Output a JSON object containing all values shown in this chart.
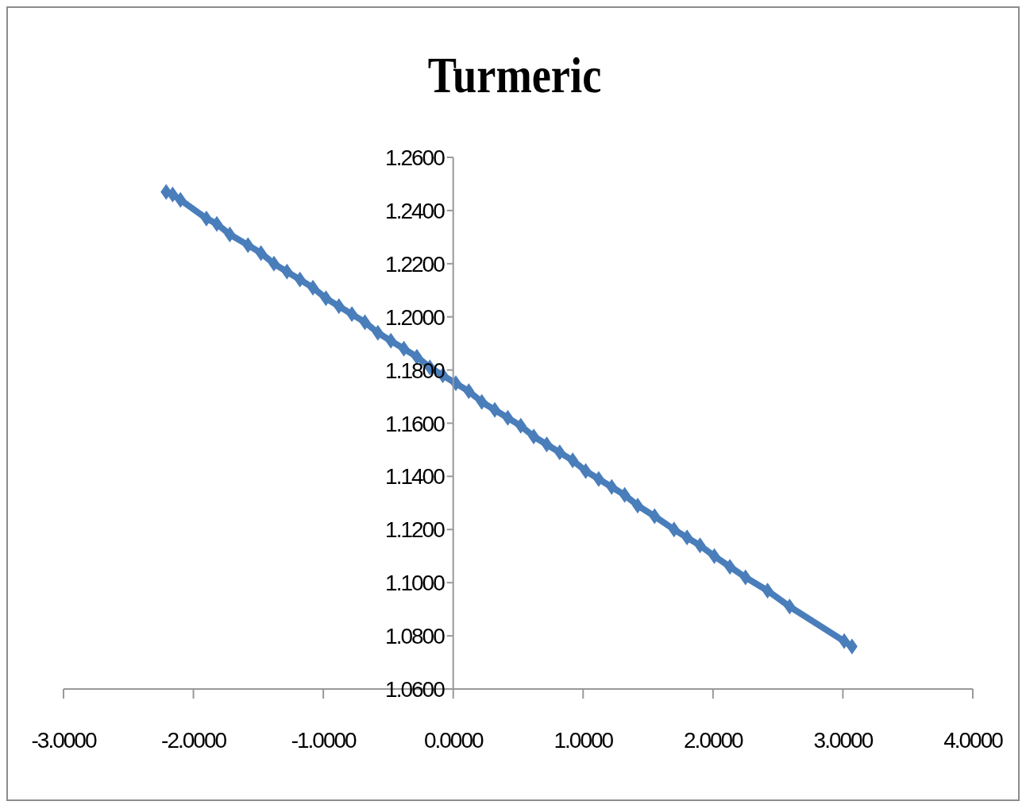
{
  "chart_data": {
    "type": "line",
    "title": "Turmeric",
    "marker": "diamond",
    "line_style": "solid",
    "xlim": [
      -3,
      4
    ],
    "xticks": [
      {
        "value": -3,
        "label": "-3.0000"
      },
      {
        "value": -2,
        "label": "-2.0000"
      },
      {
        "value": -1,
        "label": "-1.0000"
      },
      {
        "value": 0,
        "label": "0.0000"
      },
      {
        "value": 1,
        "label": "1.0000"
      },
      {
        "value": 2,
        "label": "2.0000"
      },
      {
        "value": 3,
        "label": "3.0000"
      },
      {
        "value": 4,
        "label": "4.0000"
      }
    ],
    "ylim": [
      1.06,
      1.26
    ],
    "yticks": [
      {
        "value": 1.06,
        "label": "1.0600"
      },
      {
        "value": 1.08,
        "label": "1.0800"
      },
      {
        "value": 1.1,
        "label": "1.1000"
      },
      {
        "value": 1.12,
        "label": "1.1200"
      },
      {
        "value": 1.14,
        "label": "1.1400"
      },
      {
        "value": 1.16,
        "label": "1.1600"
      },
      {
        "value": 1.18,
        "label": "1.1800"
      },
      {
        "value": 1.2,
        "label": "1.2000"
      },
      {
        "value": 1.22,
        "label": "1.2200"
      },
      {
        "value": 1.24,
        "label": "1.2400"
      },
      {
        "value": 1.26,
        "label": "1.2600"
      }
    ],
    "x": [
      -2.21,
      -2.16,
      -2.1,
      -1.9,
      -1.82,
      -1.72,
      -1.58,
      -1.48,
      -1.38,
      -1.28,
      -1.18,
      -1.08,
      -0.98,
      -0.88,
      -0.78,
      -0.68,
      -0.58,
      -0.48,
      -0.38,
      -0.28,
      -0.18,
      -0.08,
      0.02,
      0.12,
      0.22,
      0.32,
      0.42,
      0.52,
      0.62,
      0.72,
      0.82,
      0.92,
      1.02,
      1.12,
      1.22,
      1.32,
      1.42,
      1.55,
      1.7,
      1.8,
      1.9,
      2.01,
      2.13,
      2.25,
      2.42,
      2.59,
      3.01,
      3.07
    ],
    "series": [
      {
        "color": "#4a7ebb",
        "values": [
          1.247,
          1.246,
          1.244,
          1.237,
          1.235,
          1.231,
          1.227,
          1.224,
          1.22,
          1.217,
          1.214,
          1.211,
          1.207,
          1.204,
          1.201,
          1.198,
          1.194,
          1.191,
          1.188,
          1.185,
          1.181,
          1.178,
          1.175,
          1.172,
          1.168,
          1.165,
          1.162,
          1.159,
          1.155,
          1.152,
          1.149,
          1.146,
          1.142,
          1.139,
          1.136,
          1.133,
          1.129,
          1.125,
          1.12,
          1.117,
          1.114,
          1.11,
          1.106,
          1.102,
          1.097,
          1.091,
          1.078,
          1.076
        ]
      }
    ]
  }
}
